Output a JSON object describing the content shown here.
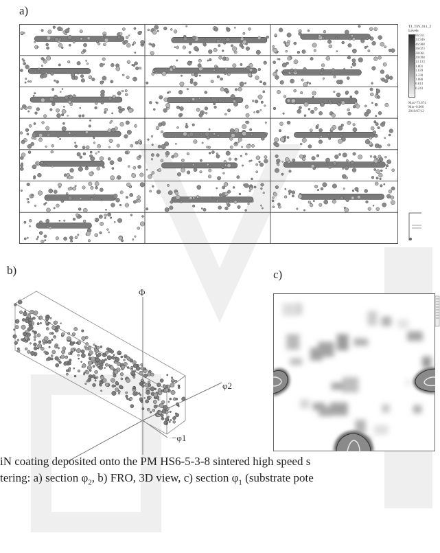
{
  "labels": {
    "a": "a)",
    "b": "b)",
    "c": "c)"
  },
  "legend": {
    "title": "TJ_TiN_011_2",
    "subtitle": "Levels",
    "levels": [
      "66.911",
      "33.946",
      "46.988",
      "36.023",
      "28.061",
      "20.098",
      "13.133",
      "1.801",
      "1.639",
      "1.330",
      "1.080",
      "0.813",
      "0.243"
    ],
    "stats": [
      "Max=73.874",
      "Min=0.000",
      "2018/07/12"
    ]
  },
  "axes_3d": {
    "vertical": "Φ",
    "right": "φ2",
    "left": "−φ1"
  },
  "caption": {
    "line1": "iN coating deposited onto the PM HS6-5-3-8 sintered high speed s",
    "line2_pre": "tering: a) section φ",
    "line2_sub1": "2",
    "line2_mid": ", b) FRO, 3D view, c) section φ",
    "line2_sub2": "1",
    "line2_post": " (substrate pote"
  },
  "colors": {
    "contour_dark": "#5a5a5a",
    "contour_mid": "#8a8a8a",
    "grid_line": "#555555"
  }
}
